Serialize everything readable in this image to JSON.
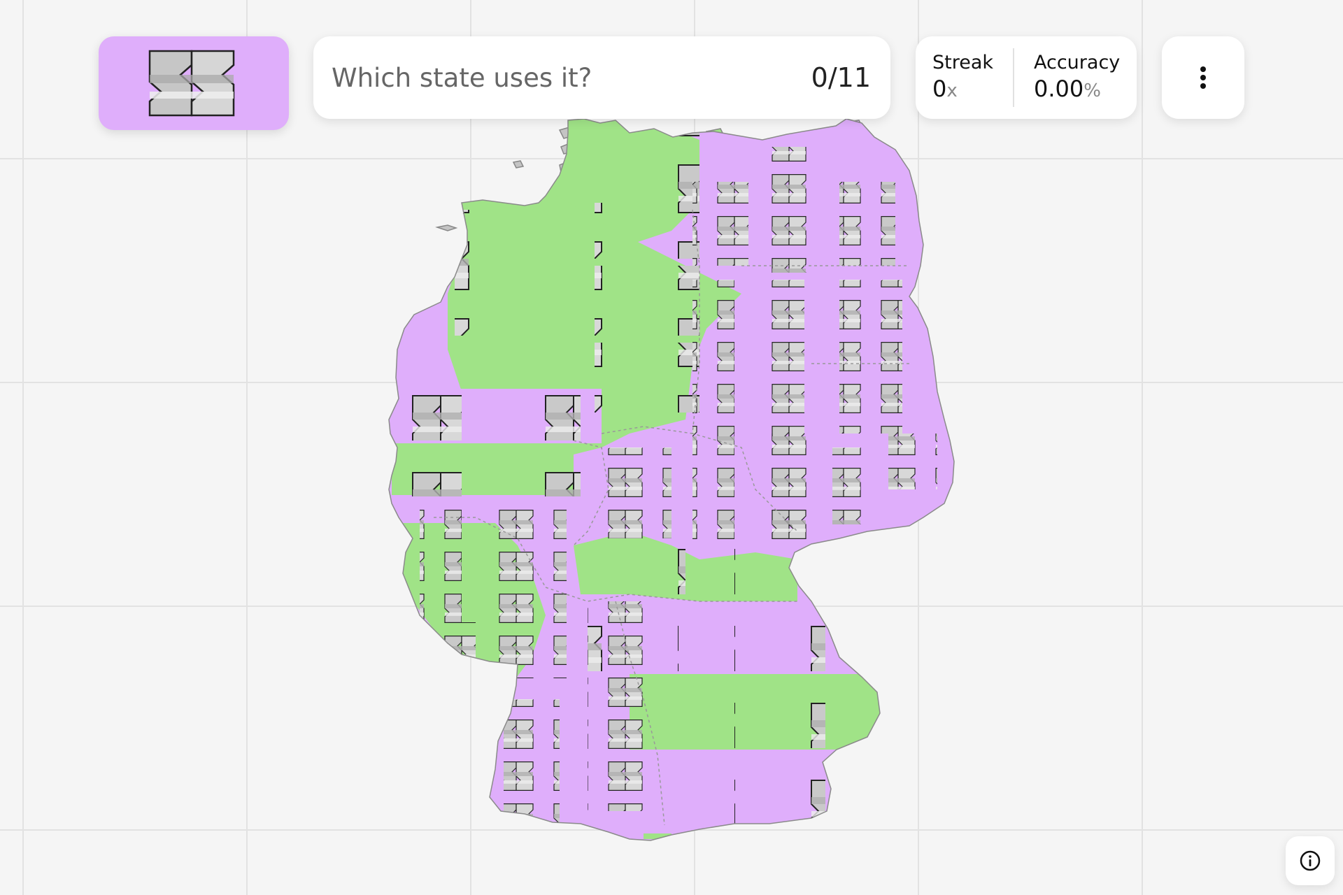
{
  "game": {
    "question": "Which state uses it?",
    "progress": "0/11",
    "answered": 0,
    "total": 11
  },
  "stats": {
    "streak_label": "Streak",
    "streak_value": "0",
    "streak_unit": "x",
    "accuracy_label": "Accuracy",
    "accuracy_value": "0.00",
    "accuracy_unit": "%"
  },
  "target": {
    "icon": "coat-of-arms-pattern-icon",
    "background_color": "#dfaefb"
  },
  "map": {
    "country": "Germany",
    "colors": {
      "pink": "#dfaefb",
      "green": "#a0e387",
      "tile": "#c4c4c4",
      "border": "#888888"
    },
    "icons": {
      "menu": "more-vertical-icon",
      "info": "info-icon"
    }
  }
}
